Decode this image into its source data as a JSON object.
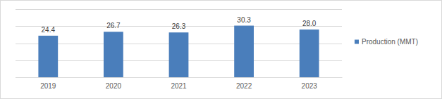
{
  "chart_data": {
    "type": "bar",
    "categories": [
      "2019",
      "2020",
      "2021",
      "2022",
      "2023"
    ],
    "series": [
      {
        "name": "Production (MMT)",
        "color": "#4a7ebb",
        "values": [
          24.4,
          26.7,
          26.3,
          30.3,
          28.0
        ],
        "value_labels": [
          "24.4",
          "26.7",
          "26.3",
          "30.3",
          "28.0"
        ]
      }
    ],
    "ylim": [
      0,
      40
    ],
    "yticks": [
      0,
      10,
      20,
      30,
      40
    ],
    "grid": true,
    "data_labels": true,
    "tick_labels": "x",
    "legend": "right"
  }
}
